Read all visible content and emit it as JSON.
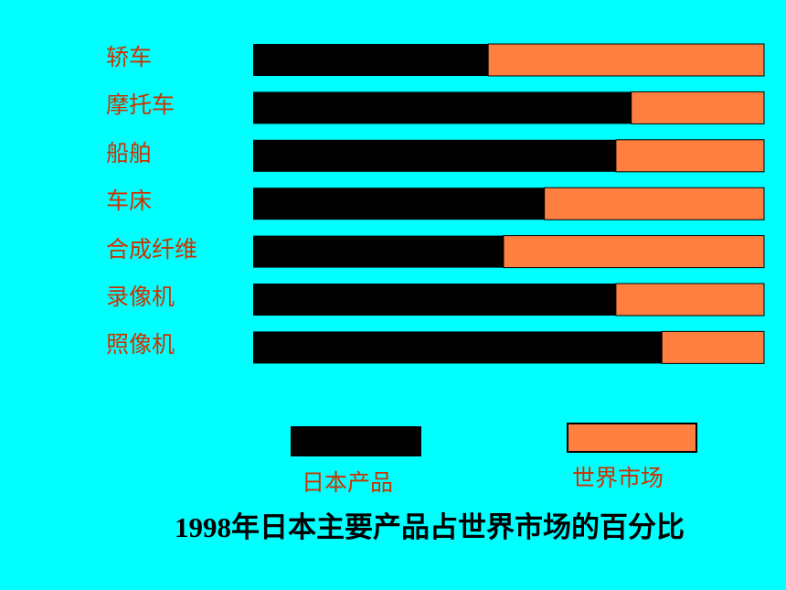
{
  "chart_data": {
    "type": "stacked_barh",
    "title": "1998年日本主要产品占世界市场的百分比",
    "categories": [
      "轿车",
      "摩托车",
      "船舶",
      "车床",
      "合成纤维",
      "录像机",
      "照像机"
    ],
    "series": [
      {
        "name": "日本产品",
        "color": "#000000",
        "values": [
          46,
          74,
          71,
          57,
          49,
          71,
          80
        ]
      },
      {
        "name": "世界市场",
        "color": "#ff7f40",
        "values": [
          54,
          26,
          29,
          43,
          51,
          29,
          20
        ]
      }
    ],
    "xlim": [
      0,
      100
    ]
  }
}
